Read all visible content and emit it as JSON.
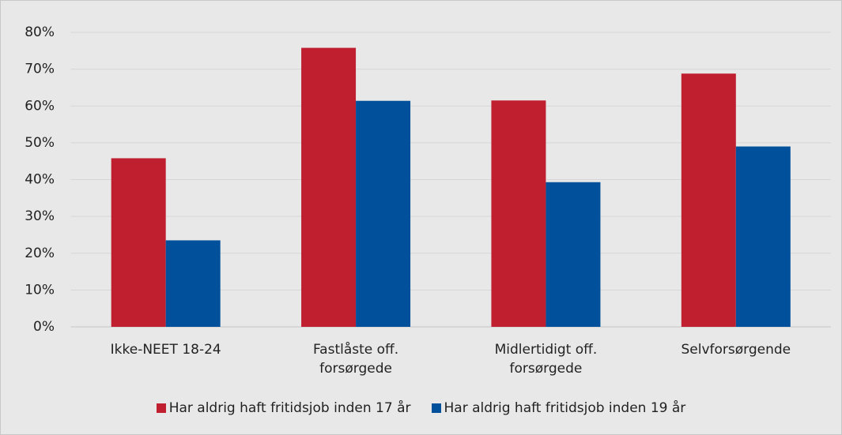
{
  "chart_data": {
    "type": "bar",
    "categories": [
      "Ikke-NEET 18-24",
      "Fastlåste off. forsørgede",
      "Midlertidigt off. forsørgede",
      "Selvforsørgende"
    ],
    "series": [
      {
        "name": "Har aldrig haft fritidsjob inden 17 år",
        "color": "#c01f30",
        "values": [
          45.8,
          75.8,
          61.5,
          68.8
        ]
      },
      {
        "name": "Har aldrig haft fritidsjob inden 19 år",
        "color": "#00509b",
        "values": [
          23.5,
          61.4,
          39.3,
          49.0
        ]
      }
    ],
    "ylim": [
      0,
      80
    ],
    "yticks": [
      {
        "value": 0,
        "label": "0%"
      },
      {
        "value": 10,
        "label": "10%"
      },
      {
        "value": 20,
        "label": "20%"
      },
      {
        "value": 30,
        "label": "30%"
      },
      {
        "value": 40,
        "label": "40%"
      },
      {
        "value": 50,
        "label": "50%"
      },
      {
        "value": 60,
        "label": "60%"
      },
      {
        "value": 70,
        "label": "70%"
      },
      {
        "value": 80,
        "label": "80%"
      }
    ],
    "grid": true,
    "legend": "bottom"
  }
}
